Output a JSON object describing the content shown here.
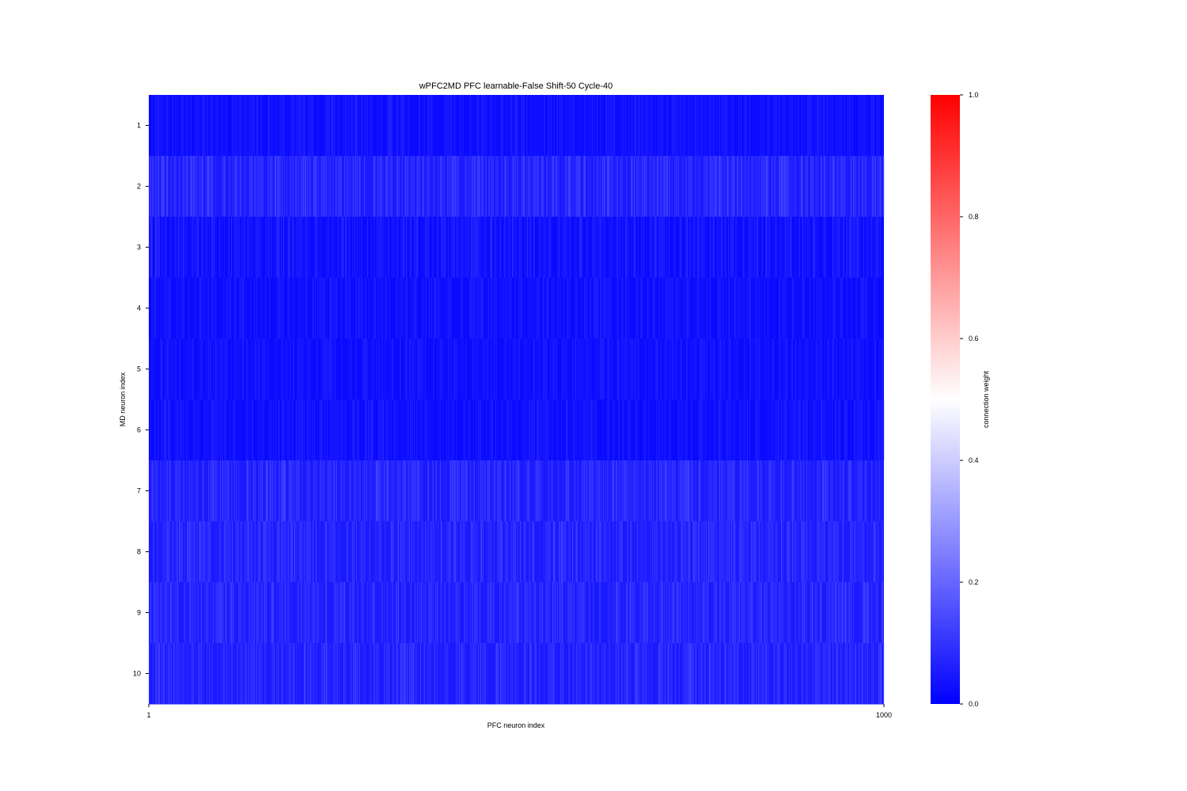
{
  "chart_data": {
    "type": "heatmap",
    "title": "wPFC2MD PFC learnable-False Shift-50 Cycle-40",
    "xlabel": "PFC neuron index",
    "ylabel": "MD neuron index",
    "x_ticks": [
      "1",
      "1000"
    ],
    "y_ticks": [
      "1",
      "2",
      "3",
      "4",
      "5",
      "6",
      "7",
      "8",
      "9",
      "10"
    ],
    "n_columns": 1000,
    "n_rows": 10,
    "rows": [
      {
        "label": "1",
        "mean_weight": 0.02,
        "noise": 0.03
      },
      {
        "label": "2",
        "mean_weight": 0.05,
        "noise": 0.05
      },
      {
        "label": "3",
        "mean_weight": 0.02,
        "noise": 0.04
      },
      {
        "label": "4",
        "mean_weight": 0.02,
        "noise": 0.03
      },
      {
        "label": "5",
        "mean_weight": 0.02,
        "noise": 0.03
      },
      {
        "label": "6",
        "mean_weight": 0.02,
        "noise": 0.03
      },
      {
        "label": "7",
        "mean_weight": 0.05,
        "noise": 0.05
      },
      {
        "label": "8",
        "mean_weight": 0.05,
        "noise": 0.05
      },
      {
        "label": "9",
        "mean_weight": 0.05,
        "noise": 0.05
      },
      {
        "label": "10",
        "mean_weight": 0.05,
        "noise": 0.05
      }
    ],
    "colorbar": {
      "label": "connection weight",
      "range": [
        0.0,
        1.0
      ],
      "ticks": [
        "0.0",
        "0.2",
        "0.4",
        "0.6",
        "0.8",
        "1.0"
      ],
      "tick_values": [
        0.0,
        0.2,
        0.4,
        0.6,
        0.8,
        1.0
      ],
      "colormap": [
        "#0000ff",
        "#ffffff",
        "#ff0000"
      ]
    }
  }
}
